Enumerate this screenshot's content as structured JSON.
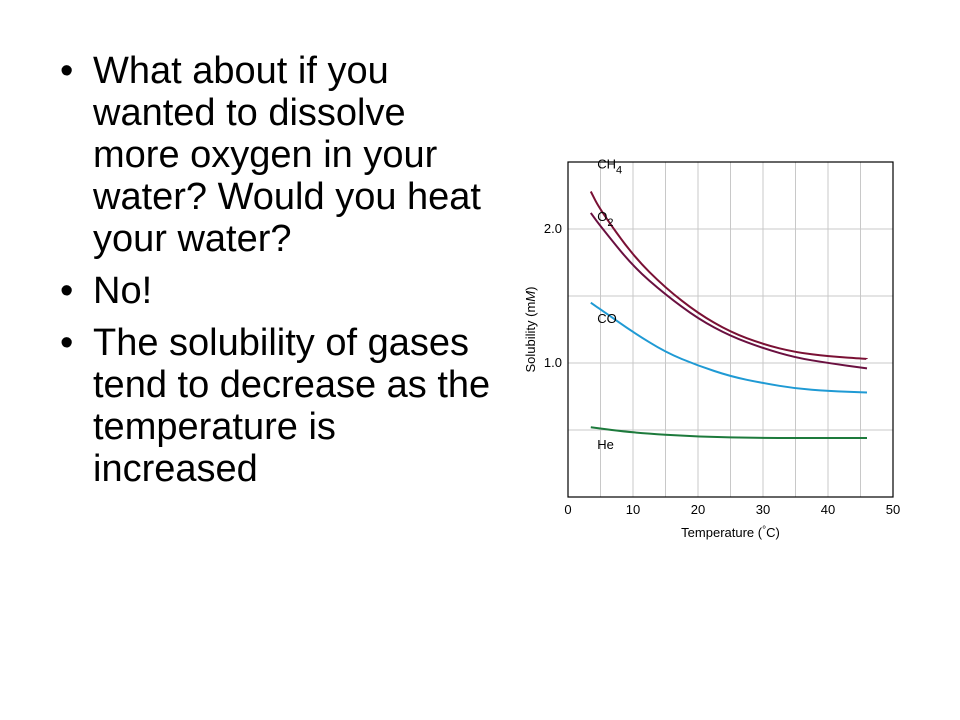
{
  "slide": {
    "bullets": [
      "What about if you wanted to dissolve more oxygen in your water? Would you heat your water?",
      "No!",
      "The solubility of gases tend to decrease as the temperature is increased"
    ]
  },
  "chart_data": {
    "type": "line",
    "xlabel_main": "Temperature (",
    "xlabel_degree": "°",
    "xlabel_unit": "C)",
    "ylabel_main": "Solubility (m",
    "ylabel_italic": "M",
    "ylabel_end": ")",
    "xlim": [
      0,
      50
    ],
    "ylim": [
      0,
      2.5
    ],
    "grid": true,
    "x_ticks": [
      0,
      10,
      20,
      30,
      40,
      50
    ],
    "x_tick_labels": [
      "0",
      "10",
      "20",
      "30",
      "40",
      "50"
    ],
    "y_ticks": [
      1.0,
      2.0
    ],
    "y_tick_labels": [
      "1.0",
      "2.0"
    ],
    "series": [
      {
        "name": "CH4",
        "label_main": "CH",
        "label_sub": "4",
        "color": "#7a1034",
        "x": [
          3.5,
          5,
          10,
          15,
          20,
          25,
          30,
          35,
          40,
          46
        ],
        "y": [
          2.28,
          2.14,
          1.8,
          1.56,
          1.37,
          1.23,
          1.14,
          1.08,
          1.05,
          1.03
        ]
      },
      {
        "name": "O2",
        "label_main": "O",
        "label_sub": "2",
        "color": "#6a1040",
        "x": [
          3.5,
          5,
          10,
          15,
          20,
          25,
          30,
          35,
          40,
          46
        ],
        "y": [
          2.12,
          2.02,
          1.72,
          1.51,
          1.33,
          1.2,
          1.11,
          1.04,
          1.0,
          0.96
        ]
      },
      {
        "name": "CO",
        "label_main": "CO",
        "label_sub": "",
        "color": "#1f9ad4",
        "x": [
          3.5,
          5,
          10,
          15,
          20,
          25,
          30,
          35,
          40,
          46
        ],
        "y": [
          1.45,
          1.4,
          1.23,
          1.08,
          0.98,
          0.9,
          0.85,
          0.81,
          0.79,
          0.78
        ]
      },
      {
        "name": "He",
        "label_main": "He",
        "label_sub": "",
        "color": "#1d7a3c",
        "x": [
          3.5,
          10,
          20,
          30,
          40,
          46
        ],
        "y": [
          0.52,
          0.48,
          0.45,
          0.44,
          0.44,
          0.44
        ]
      }
    ]
  }
}
